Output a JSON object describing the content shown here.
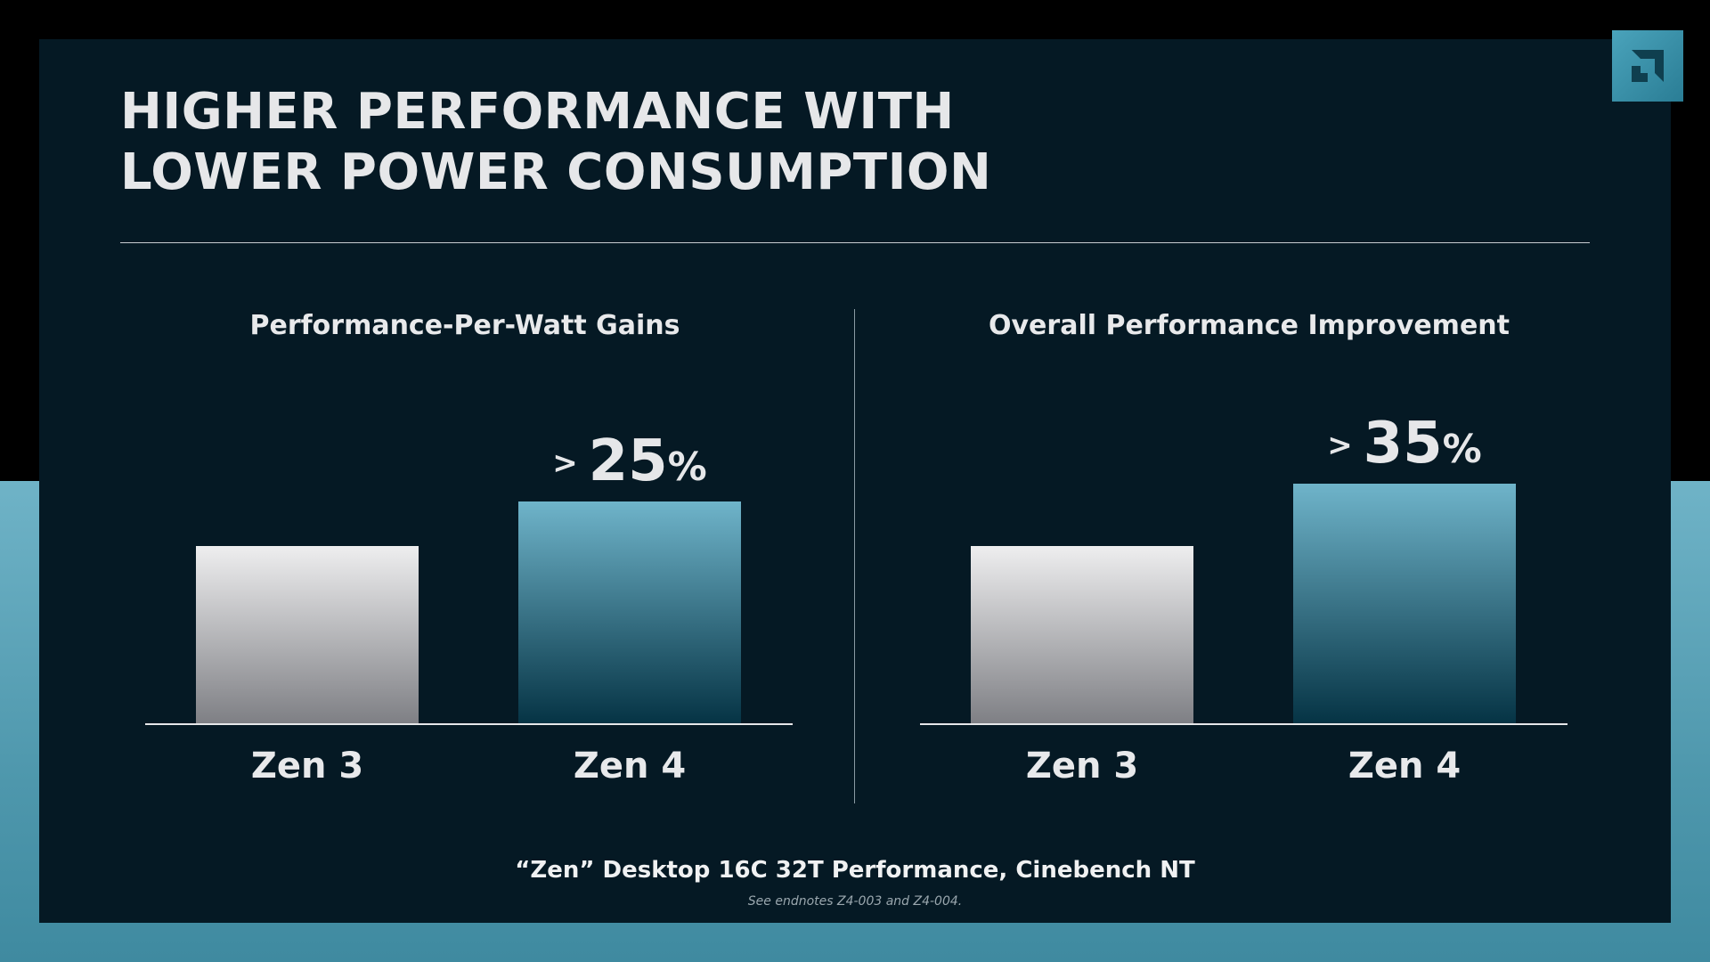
{
  "slide": {
    "title_line1": "HIGHER PERFORMANCE WITH",
    "title_line2": "LOWER POWER CONSUMPTION",
    "caption": "“Zen” Desktop 16C 32T Performance, Cinebench NT",
    "endnote": "See endnotes Z4-003 and Z4-004.",
    "logo_icon": "amd-arrow-logo-icon"
  },
  "colors": {
    "slide_bg": "#051924",
    "zen3_bar_top": "#eeeeef",
    "zen3_bar_bottom": "#7e7f84",
    "zen4_bar_top": "#6fb4ca",
    "zen4_bar_bottom": "#053344",
    "accent_teal": "#4aa3bb"
  },
  "chart_data": [
    {
      "type": "bar",
      "title": "Performance-Per-Watt Gains",
      "categories": [
        "Zen 3",
        "Zen 4"
      ],
      "values": [
        1.0,
        1.25
      ],
      "data_labels": [
        "",
        ">25%"
      ],
      "ylim": [
        0,
        2.1
      ],
      "xlabel": "",
      "ylabel": "",
      "grid": false
    },
    {
      "type": "bar",
      "title": "Overall Performance Improvement",
      "categories": [
        "Zen 3",
        "Zen 4"
      ],
      "values": [
        1.0,
        1.35
      ],
      "data_labels": [
        "",
        ">35%"
      ],
      "ylim": [
        0,
        2.1
      ],
      "xlabel": "",
      "ylabel": "",
      "grid": false
    }
  ]
}
